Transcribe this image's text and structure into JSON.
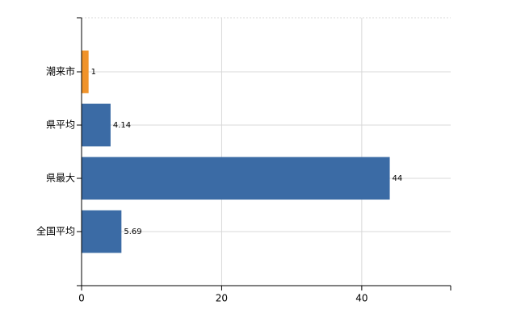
{
  "chart_data": {
    "type": "bar",
    "orientation": "horizontal",
    "categories": [
      "潮来市",
      "県平均",
      "県最大",
      "全国平均"
    ],
    "values": [
      1,
      4.14,
      44,
      5.69
    ],
    "colors": [
      "#f0932b",
      "#3b6ba5",
      "#3b6ba5",
      "#3b6ba5"
    ],
    "xlim": [
      0,
      52.7
    ],
    "xticks": [
      0,
      20,
      40
    ],
    "grid": true
  }
}
